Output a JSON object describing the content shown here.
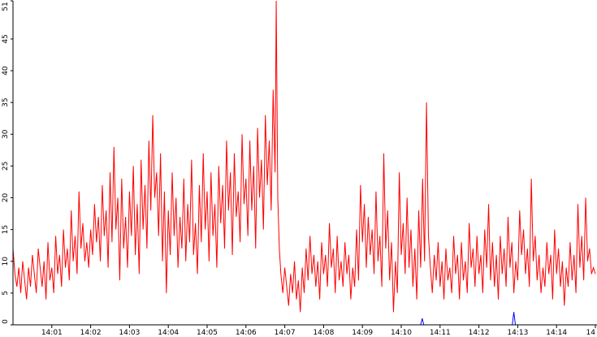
{
  "chart_data": {
    "type": "line",
    "title": "",
    "xlabel": "",
    "ylabel": "",
    "grid": false,
    "legend": "none",
    "ylim": [
      0,
      51
    ],
    "xlim": [
      0,
      15.0
    ],
    "yticks": [
      0,
      5,
      10,
      15,
      20,
      25,
      30,
      35,
      40,
      45,
      51
    ],
    "xticks": [
      {
        "x": 1,
        "label": "14:01"
      },
      {
        "x": 2,
        "label": "14:02"
      },
      {
        "x": 3,
        "label": "14:03"
      },
      {
        "x": 4,
        "label": "14:04"
      },
      {
        "x": 5,
        "label": "14:05"
      },
      {
        "x": 6,
        "label": "14:06"
      },
      {
        "x": 7,
        "label": "14:07"
      },
      {
        "x": 8,
        "label": "14:08"
      },
      {
        "x": 9,
        "label": "14:09"
      },
      {
        "x": 10,
        "label": "14:10"
      },
      {
        "x": 11,
        "label": "14:11"
      },
      {
        "x": 12,
        "label": "14:12"
      },
      {
        "x": 13,
        "label": "14:13"
      },
      {
        "x": 14,
        "label": "14:14"
      },
      {
        "x": 15,
        "label": "14"
      }
    ],
    "series": [
      {
        "color": "#ff0000",
        "points": [
          [
            0.0,
            12
          ],
          [
            0.05,
            8
          ],
          [
            0.1,
            6
          ],
          [
            0.15,
            9
          ],
          [
            0.2,
            5
          ],
          [
            0.25,
            10
          ],
          [
            0.3,
            7
          ],
          [
            0.35,
            4
          ],
          [
            0.4,
            9
          ],
          [
            0.45,
            6
          ],
          [
            0.5,
            11
          ],
          [
            0.55,
            8
          ],
          [
            0.6,
            5
          ],
          [
            0.65,
            12
          ],
          [
            0.7,
            9
          ],
          [
            0.75,
            6
          ],
          [
            0.8,
            10
          ],
          [
            0.85,
            4
          ],
          [
            0.9,
            13
          ],
          [
            0.95,
            7
          ],
          [
            1.0,
            9
          ],
          [
            1.05,
            5
          ],
          [
            1.1,
            14
          ],
          [
            1.15,
            8
          ],
          [
            1.2,
            11
          ],
          [
            1.25,
            6
          ],
          [
            1.3,
            15
          ],
          [
            1.35,
            9
          ],
          [
            1.4,
            12
          ],
          [
            1.45,
            7
          ],
          [
            1.5,
            18
          ],
          [
            1.55,
            10
          ],
          [
            1.6,
            14
          ],
          [
            1.65,
            8
          ],
          [
            1.7,
            21
          ],
          [
            1.75,
            12
          ],
          [
            1.8,
            16
          ],
          [
            1.85,
            10
          ],
          [
            1.9,
            13
          ],
          [
            1.95,
            9
          ],
          [
            2.0,
            15
          ],
          [
            2.05,
            11
          ],
          [
            2.1,
            19
          ],
          [
            2.15,
            13
          ],
          [
            2.2,
            17
          ],
          [
            2.25,
            10
          ],
          [
            2.3,
            22
          ],
          [
            2.35,
            14
          ],
          [
            2.4,
            18
          ],
          [
            2.45,
            9
          ],
          [
            2.5,
            24
          ],
          [
            2.55,
            13
          ],
          [
            2.6,
            28
          ],
          [
            2.65,
            15
          ],
          [
            2.7,
            20
          ],
          [
            2.75,
            7
          ],
          [
            2.8,
            23
          ],
          [
            2.85,
            12
          ],
          [
            2.9,
            17
          ],
          [
            2.95,
            9
          ],
          [
            3.0,
            21
          ],
          [
            3.05,
            14
          ],
          [
            3.1,
            25
          ],
          [
            3.15,
            11
          ],
          [
            3.2,
            19
          ],
          [
            3.25,
            8
          ],
          [
            3.3,
            26
          ],
          [
            3.35,
            15
          ],
          [
            3.4,
            22
          ],
          [
            3.45,
            12
          ],
          [
            3.5,
            29
          ],
          [
            3.55,
            18
          ],
          [
            3.6,
            33
          ],
          [
            3.65,
            20
          ],
          [
            3.7,
            24
          ],
          [
            3.75,
            14
          ],
          [
            3.8,
            27
          ],
          [
            3.85,
            10
          ],
          [
            3.9,
            21
          ],
          [
            3.95,
            5
          ],
          [
            4.0,
            18
          ],
          [
            4.05,
            11
          ],
          [
            4.1,
            24
          ],
          [
            4.15,
            14
          ],
          [
            4.2,
            20
          ],
          [
            4.25,
            9
          ],
          [
            4.3,
            17
          ],
          [
            4.35,
            12
          ],
          [
            4.4,
            23
          ],
          [
            4.45,
            10
          ],
          [
            4.5,
            19
          ],
          [
            4.55,
            13
          ],
          [
            4.6,
            26
          ],
          [
            4.65,
            11
          ],
          [
            4.7,
            16
          ],
          [
            4.75,
            8
          ],
          [
            4.8,
            22
          ],
          [
            4.85,
            13
          ],
          [
            4.9,
            27
          ],
          [
            4.95,
            15
          ],
          [
            5.0,
            21
          ],
          [
            5.05,
            10
          ],
          [
            5.1,
            24
          ],
          [
            5.15,
            14
          ],
          [
            5.2,
            19
          ],
          [
            5.25,
            9
          ],
          [
            5.3,
            25
          ],
          [
            5.35,
            16
          ],
          [
            5.4,
            22
          ],
          [
            5.45,
            12
          ],
          [
            5.5,
            29
          ],
          [
            5.55,
            18
          ],
          [
            5.6,
            24
          ],
          [
            5.65,
            11
          ],
          [
            5.7,
            27
          ],
          [
            5.75,
            17
          ],
          [
            5.8,
            21
          ],
          [
            5.85,
            13
          ],
          [
            5.9,
            30
          ],
          [
            5.95,
            19
          ],
          [
            6.0,
            23
          ],
          [
            6.05,
            14
          ],
          [
            6.1,
            29
          ],
          [
            6.15,
            18
          ],
          [
            6.2,
            25
          ],
          [
            6.25,
            12
          ],
          [
            6.3,
            31
          ],
          [
            6.35,
            20
          ],
          [
            6.4,
            26
          ],
          [
            6.45,
            15
          ],
          [
            6.5,
            33
          ],
          [
            6.55,
            22
          ],
          [
            6.6,
            29
          ],
          [
            6.65,
            18
          ],
          [
            6.7,
            37
          ],
          [
            6.75,
            24
          ],
          [
            6.78,
            51
          ],
          [
            6.82,
            20
          ],
          [
            6.86,
            12
          ],
          [
            6.9,
            8
          ],
          [
            6.95,
            5
          ],
          [
            7.0,
            9
          ],
          [
            7.05,
            6
          ],
          [
            7.1,
            3
          ],
          [
            7.15,
            8
          ],
          [
            7.2,
            5
          ],
          [
            7.25,
            10
          ],
          [
            7.3,
            4
          ],
          [
            7.35,
            7
          ],
          [
            7.4,
            2
          ],
          [
            7.45,
            9
          ],
          [
            7.5,
            5
          ],
          [
            7.55,
            12
          ],
          [
            7.6,
            7
          ],
          [
            7.65,
            14
          ],
          [
            7.7,
            8
          ],
          [
            7.75,
            11
          ],
          [
            7.8,
            6
          ],
          [
            7.85,
            10
          ],
          [
            7.9,
            4
          ],
          [
            7.95,
            13
          ],
          [
            8.0,
            8
          ],
          [
            8.05,
            11
          ],
          [
            8.1,
            6
          ],
          [
            8.15,
            16
          ],
          [
            8.2,
            9
          ],
          [
            8.25,
            12
          ],
          [
            8.3,
            5
          ],
          [
            8.35,
            14
          ],
          [
            8.4,
            7
          ],
          [
            8.45,
            10
          ],
          [
            8.5,
            6
          ],
          [
            8.55,
            13
          ],
          [
            8.6,
            8
          ],
          [
            8.65,
            11
          ],
          [
            8.7,
            4
          ],
          [
            8.75,
            9
          ],
          [
            8.8,
            6
          ],
          [
            8.85,
            15
          ],
          [
            8.9,
            7
          ],
          [
            8.95,
            22
          ],
          [
            9.0,
            13
          ],
          [
            9.05,
            19
          ],
          [
            9.1,
            9
          ],
          [
            9.15,
            17
          ],
          [
            9.2,
            11
          ],
          [
            9.25,
            15
          ],
          [
            9.3,
            8
          ],
          [
            9.35,
            21
          ],
          [
            9.4,
            10
          ],
          [
            9.45,
            14
          ],
          [
            9.5,
            6
          ],
          [
            9.55,
            27
          ],
          [
            9.6,
            12
          ],
          [
            9.65,
            18
          ],
          [
            9.7,
            7
          ],
          [
            9.75,
            13
          ],
          [
            9.8,
            2
          ],
          [
            9.85,
            10
          ],
          [
            9.9,
            5
          ],
          [
            9.95,
            24
          ],
          [
            10.0,
            11
          ],
          [
            10.05,
            16
          ],
          [
            10.1,
            8
          ],
          [
            10.15,
            20
          ],
          [
            10.2,
            9
          ],
          [
            10.25,
            15
          ],
          [
            10.3,
            6
          ],
          [
            10.35,
            12
          ],
          [
            10.4,
            4
          ],
          [
            10.45,
            18
          ],
          [
            10.5,
            9
          ],
          [
            10.55,
            23
          ],
          [
            10.6,
            10
          ],
          [
            10.65,
            35
          ],
          [
            10.7,
            14
          ],
          [
            10.75,
            9
          ],
          [
            10.8,
            5
          ],
          [
            10.85,
            11
          ],
          [
            10.9,
            7
          ],
          [
            10.95,
            13
          ],
          [
            11.0,
            6
          ],
          [
            11.05,
            10
          ],
          [
            11.1,
            4
          ],
          [
            11.15,
            12
          ],
          [
            11.2,
            7
          ],
          [
            11.25,
            9
          ],
          [
            11.3,
            5
          ],
          [
            11.35,
            14
          ],
          [
            11.4,
            8
          ],
          [
            11.45,
            11
          ],
          [
            11.5,
            4
          ],
          [
            11.55,
            13
          ],
          [
            11.6,
            7
          ],
          [
            11.65,
            10
          ],
          [
            11.7,
            5
          ],
          [
            11.75,
            16
          ],
          [
            11.8,
            9
          ],
          [
            11.85,
            12
          ],
          [
            11.9,
            6
          ],
          [
            11.95,
            14
          ],
          [
            12.0,
            8
          ],
          [
            12.05,
            11
          ],
          [
            12.1,
            5
          ],
          [
            12.15,
            15
          ],
          [
            12.2,
            9
          ],
          [
            12.25,
            19
          ],
          [
            12.3,
            7
          ],
          [
            12.35,
            13
          ],
          [
            12.4,
            6
          ],
          [
            12.45,
            11
          ],
          [
            12.5,
            4
          ],
          [
            12.55,
            14
          ],
          [
            12.6,
            8
          ],
          [
            12.65,
            12
          ],
          [
            12.7,
            6
          ],
          [
            12.75,
            17
          ],
          [
            12.8,
            9
          ],
          [
            12.85,
            13
          ],
          [
            12.9,
            5
          ],
          [
            12.95,
            10
          ],
          [
            13.0,
            7
          ],
          [
            13.05,
            18
          ],
          [
            13.1,
            11
          ],
          [
            13.15,
            15
          ],
          [
            13.2,
            8
          ],
          [
            13.25,
            12
          ],
          [
            13.3,
            6
          ],
          [
            13.35,
            23
          ],
          [
            13.4,
            10
          ],
          [
            13.45,
            14
          ],
          [
            13.5,
            7
          ],
          [
            13.55,
            11
          ],
          [
            13.6,
            5
          ],
          [
            13.65,
            9
          ],
          [
            13.7,
            6
          ],
          [
            13.75,
            13
          ],
          [
            13.8,
            8
          ],
          [
            13.85,
            11
          ],
          [
            13.9,
            4
          ],
          [
            13.95,
            15
          ],
          [
            14.0,
            8
          ],
          [
            14.05,
            12
          ],
          [
            14.1,
            6
          ],
          [
            14.15,
            10
          ],
          [
            14.2,
            3
          ],
          [
            14.25,
            9
          ],
          [
            14.3,
            6
          ],
          [
            14.35,
            13
          ],
          [
            14.4,
            7
          ],
          [
            14.45,
            11
          ],
          [
            14.5,
            5
          ],
          [
            14.55,
            19
          ],
          [
            14.6,
            9
          ],
          [
            14.65,
            14
          ],
          [
            14.7,
            7
          ],
          [
            14.75,
            20
          ],
          [
            14.8,
            10
          ],
          [
            14.85,
            12
          ],
          [
            14.9,
            8
          ],
          [
            14.95,
            9
          ],
          [
            15.0,
            8
          ]
        ]
      },
      {
        "color": "#0000ff",
        "points": [
          [
            0.0,
            0
          ],
          [
            10.5,
            0
          ],
          [
            10.54,
            1
          ],
          [
            10.58,
            0
          ],
          [
            12.86,
            0
          ],
          [
            12.9,
            2
          ],
          [
            12.94,
            0
          ],
          [
            15.0,
            0
          ]
        ]
      }
    ]
  }
}
